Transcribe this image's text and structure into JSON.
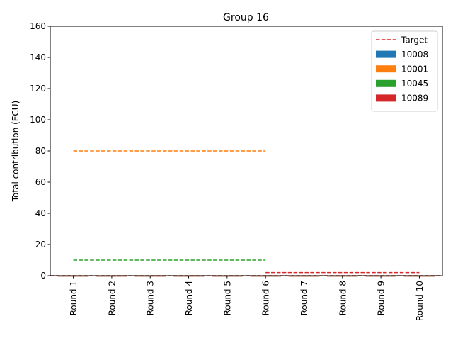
{
  "chart_data": {
    "type": "bar",
    "title": "Group 16",
    "xlabel": "",
    "ylabel": "Total contribution (ECU)",
    "ylim": [
      0,
      160
    ],
    "yticks": [
      0,
      20,
      40,
      60,
      80,
      100,
      120,
      140,
      160
    ],
    "categories": [
      "Round 1",
      "Round 2",
      "Round 3",
      "Round 4",
      "Round 5",
      "Round 6",
      "Round 7",
      "Round 8",
      "Round 9",
      "Round 10"
    ],
    "series": [
      {
        "name": "10008",
        "color": "#1f77b4",
        "values": [
          0,
          0,
          0,
          0,
          0,
          0,
          0,
          0,
          0,
          0
        ]
      },
      {
        "name": "10001",
        "color": "#ff7f0e",
        "values": [
          0,
          0,
          0,
          0,
          0,
          0,
          0,
          0,
          0,
          0
        ]
      },
      {
        "name": "10045",
        "color": "#2ca02c",
        "values": [
          0,
          0,
          0,
          0,
          0,
          0,
          0,
          0,
          0,
          0
        ]
      },
      {
        "name": "10089",
        "color": "#d62728",
        "values": [
          0,
          0,
          0,
          0,
          0,
          0,
          0,
          0,
          0,
          0
        ]
      }
    ],
    "target_lines": [
      {
        "name": "Target",
        "color": "#d62728",
        "from": "Round 1",
        "to": "Round 6",
        "value": 0
      },
      {
        "color": "#ff7f0e",
        "from": "Round 1",
        "to": "Round 6",
        "value": 80
      },
      {
        "color": "#2ca02c",
        "from": "Round 1",
        "to": "Round 6",
        "value": 10
      },
      {
        "color": "#d62728",
        "from": "Round 6",
        "to": "Round 10",
        "value": 2
      }
    ],
    "legend": {
      "position": "top-right",
      "entries": [
        {
          "label": "Target",
          "kind": "dashed-line",
          "color": "#d62728"
        },
        {
          "label": "10008",
          "kind": "patch",
          "color": "#1f77b4"
        },
        {
          "label": "10001",
          "kind": "patch",
          "color": "#ff7f0e"
        },
        {
          "label": "10045",
          "kind": "patch",
          "color": "#2ca02c"
        },
        {
          "label": "10089",
          "kind": "patch",
          "color": "#d62728"
        }
      ]
    },
    "grid": false
  }
}
